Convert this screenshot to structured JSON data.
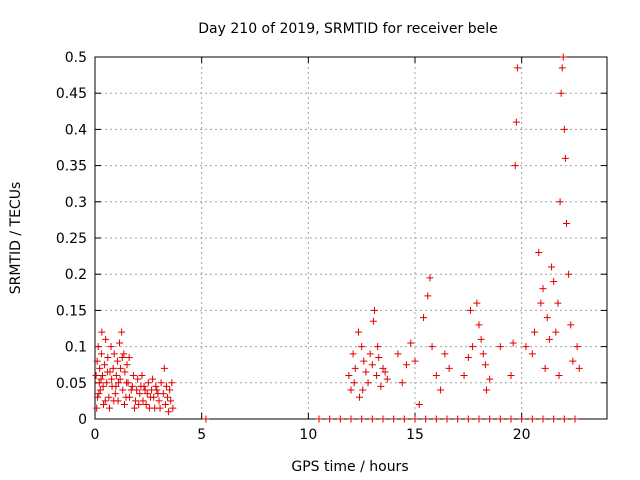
{
  "chart_data": {
    "type": "scatter",
    "title": "Day 210 of 2019, SRMTID for receiver bele",
    "xlabel": "GPS time / hours",
    "ylabel": "SRMTID / TECUs",
    "xlim": [
      0,
      24
    ],
    "ylim": [
      0,
      0.5
    ],
    "xticks": [
      0,
      5,
      10,
      15,
      20
    ],
    "xtick_labels": [
      "0",
      "5",
      "10",
      "15",
      "20"
    ],
    "yticks": [
      0,
      0.05,
      0.1,
      0.15,
      0.2,
      0.25,
      0.3,
      0.35,
      0.4,
      0.45,
      0.5
    ],
    "ytick_labels": [
      "0",
      "0.05",
      "0.1",
      "0.15",
      "0.2",
      "0.25",
      "0.3",
      "0.35",
      "0.4",
      "0.45",
      "0.5"
    ],
    "grid": true,
    "marker": "+",
    "color": "#e00000",
    "series": [
      {
        "name": "SRMTID",
        "points": [
          [
            0.05,
            0.06
          ],
          [
            0.1,
            0.08
          ],
          [
            0.12,
            0.03
          ],
          [
            0.15,
            0.1
          ],
          [
            0.2,
            0.05
          ],
          [
            0.22,
            0.07
          ],
          [
            0.25,
            0.04
          ],
          [
            0.3,
            0.09
          ],
          [
            0.32,
            0.12
          ],
          [
            0.35,
            0.06
          ],
          [
            0.4,
            0.02
          ],
          [
            0.45,
            0.075
          ],
          [
            0.5,
            0.11
          ],
          [
            0.55,
            0.05
          ],
          [
            0.6,
            0.085
          ],
          [
            0.65,
            0.03
          ],
          [
            0.7,
            0.065
          ],
          [
            0.75,
            0.1
          ],
          [
            0.8,
            0.045
          ],
          [
            0.85,
            0.07
          ],
          [
            0.9,
            0.09
          ],
          [
            0.95,
            0.035
          ],
          [
            1.0,
            0.06
          ],
          [
            1.05,
            0.08
          ],
          [
            1.1,
            0.05
          ],
          [
            1.15,
            0.105
          ],
          [
            1.2,
            0.07
          ],
          [
            1.25,
            0.12
          ],
          [
            1.3,
            0.04
          ],
          [
            1.35,
            0.09
          ],
          [
            1.4,
            0.065
          ],
          [
            1.45,
            0.03
          ],
          [
            1.5,
            0.075
          ],
          [
            1.55,
            0.05
          ],
          [
            1.6,
            0.085
          ],
          [
            1.7,
            0.04
          ],
          [
            1.8,
            0.06
          ],
          [
            1.9,
            0.025
          ],
          [
            2.0,
            0.055
          ],
          [
            2.1,
            0.035
          ],
          [
            2.2,
            0.06
          ],
          [
            2.3,
            0.045
          ],
          [
            2.4,
            0.02
          ],
          [
            2.5,
            0.05
          ],
          [
            2.6,
            0.03
          ],
          [
            2.7,
            0.055
          ],
          [
            2.8,
            0.015
          ],
          [
            2.9,
            0.04
          ],
          [
            3.0,
            0.025
          ],
          [
            3.1,
            0.05
          ],
          [
            3.2,
            0.035
          ],
          [
            3.25,
            0.07
          ],
          [
            3.3,
            0.02
          ],
          [
            3.35,
            0.045
          ],
          [
            3.4,
            0.03
          ],
          [
            3.45,
            0.01
          ],
          [
            3.5,
            0.04
          ],
          [
            3.55,
            0.025
          ],
          [
            3.6,
            0.05
          ],
          [
            3.65,
            0.015
          ],
          [
            0.08,
            0.015
          ],
          [
            0.18,
            0.035
          ],
          [
            0.28,
            0.055
          ],
          [
            0.38,
            0.045
          ],
          [
            0.48,
            0.025
          ],
          [
            0.58,
            0.065
          ],
          [
            0.68,
            0.015
          ],
          [
            0.78,
            0.055
          ],
          [
            0.88,
            0.025
          ],
          [
            0.98,
            0.045
          ],
          [
            1.08,
            0.025
          ],
          [
            1.18,
            0.055
          ],
          [
            1.28,
            0.085
          ],
          [
            1.38,
            0.02
          ],
          [
            1.48,
            0.05
          ],
          [
            1.62,
            0.03
          ],
          [
            1.75,
            0.045
          ],
          [
            1.85,
            0.015
          ],
          [
            1.95,
            0.04
          ],
          [
            2.05,
            0.02
          ],
          [
            2.15,
            0.045
          ],
          [
            2.25,
            0.025
          ],
          [
            2.35,
            0.04
          ],
          [
            2.45,
            0.035
          ],
          [
            2.55,
            0.015
          ],
          [
            2.65,
            0.04
          ],
          [
            2.75,
            0.03
          ],
          [
            2.85,
            0.045
          ],
          [
            2.95,
            0.035
          ],
          [
            3.05,
            0.015
          ],
          [
            5.2,
            0
          ],
          [
            11.9,
            0.06
          ],
          [
            12.0,
            0.04
          ],
          [
            12.1,
            0.09
          ],
          [
            12.15,
            0.05
          ],
          [
            12.2,
            0.07
          ],
          [
            12.4,
            0.03
          ],
          [
            12.5,
            0.1
          ],
          [
            12.6,
            0.08
          ],
          [
            12.7,
            0.065
          ],
          [
            12.8,
            0.05
          ],
          [
            12.9,
            0.09
          ],
          [
            13.0,
            0.075
          ],
          [
            13.1,
            0.15
          ],
          [
            13.2,
            0.06
          ],
          [
            13.3,
            0.085
          ],
          [
            13.4,
            0.045
          ],
          [
            13.5,
            0.07
          ],
          [
            13.6,
            0.065
          ],
          [
            13.7,
            0.055
          ],
          [
            12.35,
            0.12
          ],
          [
            13.05,
            0.135
          ],
          [
            12.55,
            0.04
          ],
          [
            13.25,
            0.1
          ],
          [
            14.2,
            0.09
          ],
          [
            14.4,
            0.05
          ],
          [
            14.6,
            0.075
          ],
          [
            14.8,
            0.105
          ],
          [
            15.0,
            0.08
          ],
          [
            15.2,
            0.02
          ],
          [
            15.4,
            0.14
          ],
          [
            15.6,
            0.17
          ],
          [
            15.7,
            0.195
          ],
          [
            15.8,
            0.1
          ],
          [
            16.0,
            0.06
          ],
          [
            16.2,
            0.04
          ],
          [
            16.4,
            0.09
          ],
          [
            16.6,
            0.07
          ],
          [
            17.3,
            0.06
          ],
          [
            17.5,
            0.085
          ],
          [
            17.6,
            0.15
          ],
          [
            17.7,
            0.1
          ],
          [
            17.9,
            0.16
          ],
          [
            18.0,
            0.13
          ],
          [
            18.1,
            0.11
          ],
          [
            18.2,
            0.09
          ],
          [
            18.3,
            0.075
          ],
          [
            18.35,
            0.04
          ],
          [
            18.5,
            0.055
          ],
          [
            19.0,
            0.1
          ],
          [
            19.5,
            0.06
          ],
          [
            19.6,
            0.105
          ],
          [
            19.7,
            0.35
          ],
          [
            19.75,
            0.41
          ],
          [
            19.8,
            0.485
          ],
          [
            20.2,
            0.1
          ],
          [
            20.5,
            0.09
          ],
          [
            20.6,
            0.12
          ],
          [
            20.8,
            0.23
          ],
          [
            20.9,
            0.16
          ],
          [
            21.0,
            0.18
          ],
          [
            21.1,
            0.07
          ],
          [
            21.2,
            0.14
          ],
          [
            21.3,
            0.11
          ],
          [
            21.5,
            0.19
          ],
          [
            21.6,
            0.12
          ],
          [
            21.7,
            0.16
          ],
          [
            21.8,
            0.3
          ],
          [
            21.85,
            0.45
          ],
          [
            21.9,
            0.485
          ],
          [
            21.95,
            0.5
          ],
          [
            22.0,
            0.4
          ],
          [
            22.05,
            0.36
          ],
          [
            22.1,
            0.27
          ],
          [
            22.2,
            0.2
          ],
          [
            22.3,
            0.13
          ],
          [
            22.4,
            0.08
          ],
          [
            22.6,
            0.1
          ],
          [
            22.7,
            0.07
          ],
          [
            21.4,
            0.21
          ],
          [
            21.75,
            0.06
          ],
          [
            10.5,
            0
          ],
          [
            11.0,
            0
          ],
          [
            11.5,
            0
          ],
          [
            12.0,
            0
          ],
          [
            12.5,
            0
          ],
          [
            13.0,
            0
          ],
          [
            13.5,
            0
          ],
          [
            14.0,
            0
          ],
          [
            14.5,
            0
          ],
          [
            15.0,
            0
          ],
          [
            15.5,
            0
          ],
          [
            16.0,
            0
          ],
          [
            16.5,
            0
          ],
          [
            17.0,
            0
          ],
          [
            17.5,
            0
          ],
          [
            18.0,
            0
          ],
          [
            18.5,
            0
          ],
          [
            19.0,
            0
          ],
          [
            19.5,
            0
          ],
          [
            20.0,
            0
          ],
          [
            20.5,
            0
          ],
          [
            21.0,
            0
          ],
          [
            21.5,
            0
          ],
          [
            22.0,
            0
          ],
          [
            22.5,
            0
          ]
        ]
      }
    ]
  }
}
